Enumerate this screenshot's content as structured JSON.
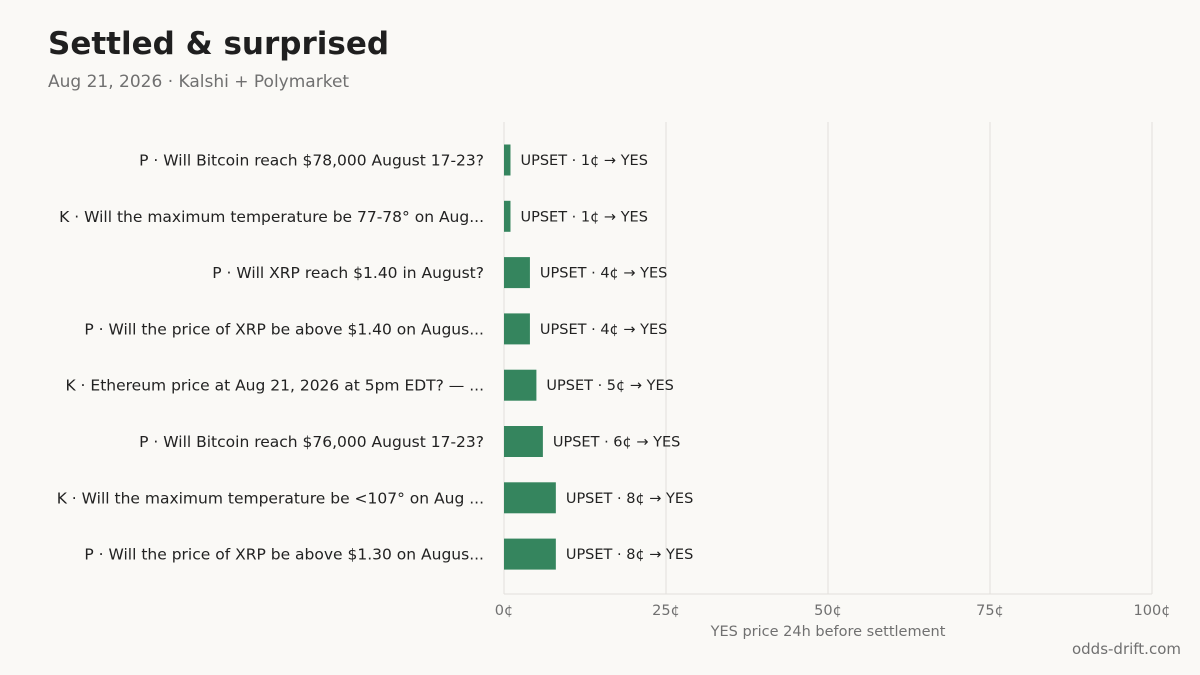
{
  "header": {
    "title": "Settled & surprised",
    "subtitle": "Aug 21, 2026 · Kalshi + Polymarket"
  },
  "footer": {
    "source": "odds-drift.com"
  },
  "colors": {
    "bar": "#35855e",
    "grid": "#e2e0dc",
    "background": "#faf9f6"
  },
  "chart_data": {
    "type": "bar",
    "orientation": "horizontal",
    "categories": [
      "P · Will Bitcoin reach $78,000 August 17-23?",
      "K · Will the maximum temperature be 77-78° on Aug...",
      "P · Will XRP reach $1.40 in August?",
      "P · Will the price of XRP be above $1.40 on Augus...",
      "K · Ethereum price at Aug 21, 2026 at 5pm EDT? — ...",
      "P · Will Bitcoin reach $76,000 August 17-23?",
      "K · Will the maximum temperature be <107° on Aug ...",
      "P · Will the price of XRP be above $1.30 on Augus..."
    ],
    "values": [
      1,
      1,
      4,
      4,
      5,
      6,
      8,
      8
    ],
    "bar_labels": [
      "UPSET · 1¢ → YES",
      "UPSET · 1¢ → YES",
      "UPSET · 4¢ → YES",
      "UPSET · 4¢ → YES",
      "UPSET · 5¢ → YES",
      "UPSET · 6¢ → YES",
      "UPSET · 8¢ → YES",
      "UPSET · 8¢ → YES"
    ],
    "xlabel": "YES price 24h before settlement",
    "xlim": [
      0,
      100
    ],
    "xticks": [
      0,
      25,
      50,
      75,
      100
    ],
    "xtick_labels": [
      "0¢",
      "25¢",
      "50¢",
      "75¢",
      "100¢"
    ],
    "grid": "vertical"
  }
}
